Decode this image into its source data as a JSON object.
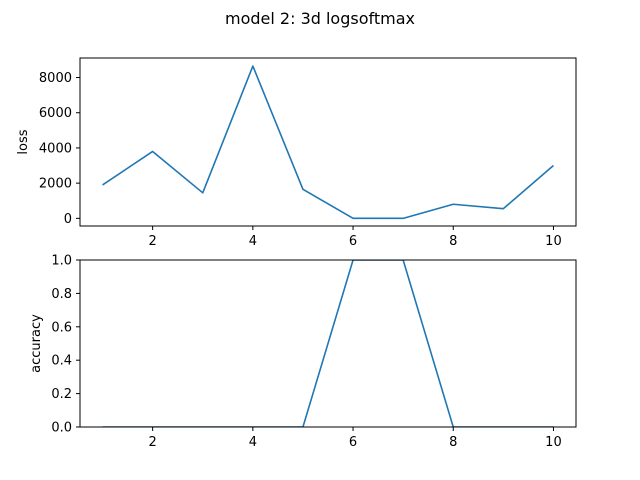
{
  "chart_data": {
    "suptitle": "model 2: 3d logsoftmax",
    "line_color": "#1f77b4",
    "charts": [
      {
        "id": "loss",
        "type": "line",
        "ylabel": "loss",
        "xlim": [
          0.55,
          10.45
        ],
        "ylim": [
          -435,
          9110
        ],
        "xticks": [
          2,
          4,
          6,
          8,
          10
        ],
        "yticks": [
          0,
          2000,
          4000,
          6000,
          8000
        ],
        "grid": false,
        "x": [
          1,
          2,
          3,
          4,
          5,
          6,
          7,
          8,
          9,
          10
        ],
        "y": [
          1900,
          3800,
          1450,
          8650,
          1650,
          0,
          0,
          800,
          550,
          3000
        ]
      },
      {
        "id": "accuracy",
        "type": "line",
        "ylabel": "accuracy",
        "xlim": [
          0.55,
          10.45
        ],
        "ylim": [
          0,
          1
        ],
        "xticks": [
          2,
          4,
          6,
          8,
          10
        ],
        "yticks": [
          0.0,
          0.2,
          0.4,
          0.6,
          0.8,
          1.0
        ],
        "ytick_labels": [
          "0.0",
          "0.2",
          "0.4",
          "0.6",
          "0.8",
          "1.0"
        ],
        "grid": false,
        "x": [
          1,
          2,
          3,
          4,
          5,
          6,
          7,
          8,
          9,
          10
        ],
        "y": [
          0,
          0,
          0,
          0,
          0,
          1,
          1,
          0,
          0,
          0
        ]
      }
    ]
  }
}
